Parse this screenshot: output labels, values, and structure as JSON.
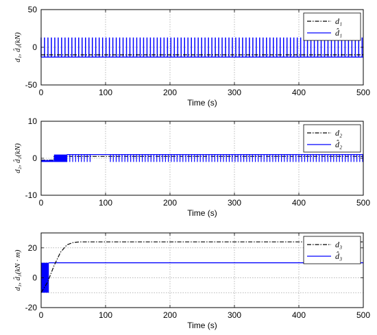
{
  "chart_data": [
    {
      "type": "line",
      "xlabel": "Time (s)",
      "ylabel": "d₁, d̂₁(kN)",
      "xlim": [
        0,
        500
      ],
      "ylim": [
        -50,
        50
      ],
      "xticks": [
        "0",
        "100",
        "200",
        "300",
        "400",
        "500"
      ],
      "yticks": [
        "-50",
        "0",
        "50"
      ],
      "grid": true,
      "legend_position": "top-right",
      "series": [
        {
          "name": "d₁",
          "style": "dash-dot",
          "color": "#000000",
          "constant": -10
        },
        {
          "name": "d̂₁",
          "style": "solid",
          "color": "#0000ff",
          "switching_low": -13,
          "switching_high": 13,
          "spike_spacing": 5.3
        }
      ]
    },
    {
      "type": "line",
      "xlabel": "Time (s)",
      "ylabel": "d₂, d̂₂(kN)",
      "xlim": [
        0,
        500
      ],
      "ylim": [
        -10,
        10
      ],
      "xticks": [
        "0",
        "100",
        "200",
        "300",
        "400",
        "500"
      ],
      "yticks": [
        "-10",
        "0",
        "10"
      ],
      "grid": true,
      "legend_position": "top-right",
      "series": [
        {
          "name": "d₂",
          "style": "dash-dot",
          "color": "#000000",
          "points": [
            [
              0,
              -0.5
            ],
            [
              20,
              -0.5
            ],
            [
              20,
              0.5
            ],
            [
              500,
              0.5
            ]
          ]
        },
        {
          "name": "d̂₂",
          "style": "solid",
          "color": "#0000ff",
          "dense_band": [
            [
              0,
              20,
              -1,
              -0.5
            ],
            [
              20,
              40,
              -1,
              1
            ]
          ],
          "baseline": 1,
          "spike_low": -1,
          "spike_spacing": 4.5
        }
      ]
    },
    {
      "type": "line",
      "xlabel": "Time (s)",
      "ylabel": "d₃, d̂₃(kN · m)",
      "xlim": [
        0,
        500
      ],
      "ylim": [
        -20,
        30
      ],
      "xticks": [
        "0",
        "100",
        "200",
        "300",
        "400",
        "500"
      ],
      "yticks": [
        "-20",
        "0",
        "20"
      ],
      "grid": true,
      "legend_position": "top-right",
      "series": [
        {
          "name": "d₃",
          "style": "dash-dot",
          "color": "#000000",
          "points": [
            [
              0,
              -10
            ],
            [
              10,
              -3
            ],
            [
              20,
              8
            ],
            [
              30,
              17
            ],
            [
              40,
              22
            ],
            [
              50,
              23.6
            ],
            [
              60,
              24
            ],
            [
              500,
              24
            ]
          ]
        },
        {
          "name": "d̂₃",
          "style": "solid",
          "color": "#0000ff",
          "dense_band": [
            [
              0,
              12,
              -10,
              10
            ]
          ],
          "constant": 10
        }
      ]
    }
  ]
}
